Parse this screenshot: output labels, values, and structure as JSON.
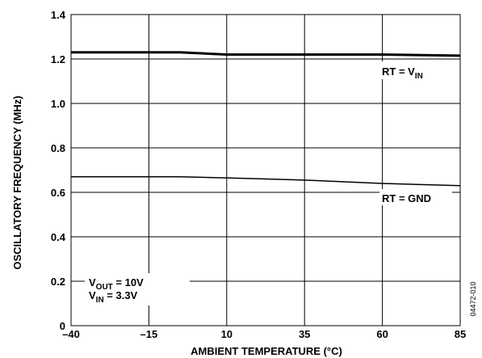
{
  "chart_data": {
    "type": "line",
    "title": "",
    "xlabel": "AMBIENT TEMPERATURE (°C)",
    "ylabel": "OSCILLATORY FREQUENCY (MHz)",
    "xlim": [
      -40,
      85
    ],
    "ylim": [
      0,
      1.4
    ],
    "x_ticks": [
      -40,
      -15,
      10,
      35,
      60,
      85
    ],
    "x_tick_labels": [
      "–40",
      "–15",
      "10",
      "35",
      "60",
      "85"
    ],
    "y_ticks": [
      0,
      0.2,
      0.4,
      0.6,
      0.8,
      1.0,
      1.2,
      1.4
    ],
    "y_tick_labels": [
      "0",
      "0.2",
      "0.4",
      "0.6",
      "0.8",
      "1.0",
      "1.2",
      "1.4"
    ],
    "grid": true,
    "series": [
      {
        "name": "RT = VIN",
        "label_main": "RT = V",
        "label_sub": "IN",
        "color": "#000000",
        "x": [
          -40,
          -15,
          -5,
          10,
          35,
          60,
          85
        ],
        "y": [
          1.23,
          1.23,
          1.23,
          1.22,
          1.22,
          1.22,
          1.215
        ]
      },
      {
        "name": "RT = GND",
        "label_main": "RT = GND",
        "color": "#000000",
        "x": [
          -40,
          -15,
          -5,
          10,
          23,
          35,
          60,
          85
        ],
        "y": [
          0.67,
          0.67,
          0.67,
          0.665,
          0.66,
          0.655,
          0.64,
          0.63
        ]
      }
    ],
    "conditions": {
      "line1_main": "V",
      "line1_sub": "OUT",
      "line1_rest": " = 10V",
      "line2_main": "V",
      "line2_sub": "IN",
      "line2_rest": " = 3.3V"
    },
    "figure_id": "04472-010"
  }
}
